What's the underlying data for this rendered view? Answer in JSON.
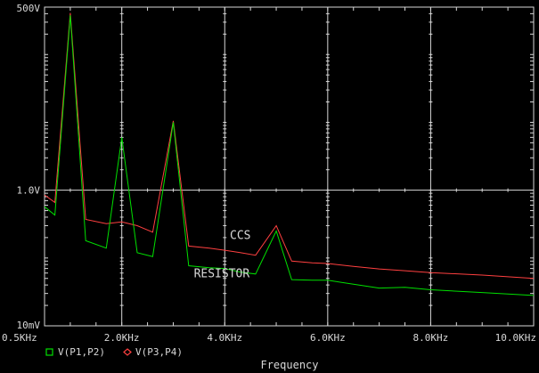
{
  "chart_data": {
    "type": "line",
    "xlabel": "Frequency",
    "xlim": [
      0.5,
      10.0
    ],
    "x_unit": "KHz",
    "x_ticks": [
      0.5,
      2.0,
      4.0,
      6.0,
      8.0,
      10.0
    ],
    "x_tick_labels": [
      "0.5KHz",
      "2.0KHz",
      "4.0KHz",
      "6.0KHz",
      "8.0KHz",
      "10.0KHz"
    ],
    "y_scale": "log",
    "ylim": [
      0.01,
      500
    ],
    "y_ticks": [
      0.01,
      1.0,
      500
    ],
    "y_tick_labels": [
      "10mV",
      "1.0V",
      "500V"
    ],
    "grid": true,
    "legend_position": "bottom-left",
    "series": [
      {
        "name": "V(P1,P2)",
        "marker": "square",
        "color": "#00e000",
        "x": [
          0.5,
          0.7,
          1.0,
          1.3,
          1.7,
          2.0,
          2.3,
          2.6,
          3.0,
          3.3,
          3.7,
          4.0,
          4.3,
          4.6,
          5.0,
          5.3,
          5.7,
          6.0,
          6.5,
          7.0,
          7.5,
          8.0,
          9.0,
          10.0
        ],
        "values": [
          0.57,
          0.43,
          380,
          0.18,
          0.14,
          6.0,
          0.12,
          0.105,
          10.0,
          0.077,
          0.072,
          0.07,
          0.062,
          0.058,
          0.25,
          0.048,
          0.047,
          0.047,
          0.041,
          0.036,
          0.037,
          0.034,
          0.031,
          0.028
        ]
      },
      {
        "name": "V(P3,P4)",
        "marker": "diamond",
        "color": "#ff4040",
        "x": [
          0.5,
          0.7,
          1.0,
          1.3,
          1.7,
          2.0,
          2.3,
          2.6,
          3.0,
          3.3,
          3.7,
          4.0,
          4.3,
          4.6,
          5.0,
          5.3,
          5.7,
          6.0,
          6.5,
          7.0,
          7.5,
          8.0,
          9.0,
          10.0
        ],
        "values": [
          0.85,
          0.66,
          410,
          0.37,
          0.32,
          0.34,
          0.3,
          0.24,
          10.5,
          0.15,
          0.14,
          0.13,
          0.12,
          0.11,
          0.3,
          0.09,
          0.085,
          0.083,
          0.075,
          0.069,
          0.065,
          0.061,
          0.056,
          0.05
        ]
      }
    ],
    "annotations": [
      {
        "text": "CCS",
        "x": 4.1,
        "y": 0.19
      },
      {
        "text": "RESISTOR",
        "x": 3.4,
        "y": 0.052
      }
    ]
  },
  "colors": {
    "background": "#000000",
    "grid": "#d8d8d8",
    "text": "#d8d8d8"
  }
}
